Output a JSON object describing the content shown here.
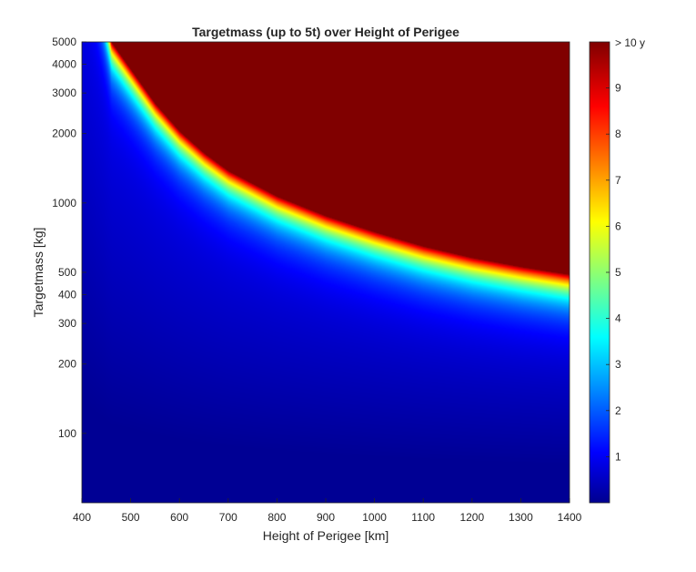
{
  "chart_data": {
    "type": "heatmap",
    "title": "Targetmass (up to 5t) over Height of Perigee",
    "xlabel": "Height of Perigee [km]",
    "ylabel": "Targetmass [kg]",
    "xlim": [
      400,
      1400
    ],
    "ylim": [
      50,
      5000
    ],
    "yscale": "log",
    "x_ticks": [
      400,
      500,
      600,
      700,
      800,
      900,
      1000,
      1100,
      1200,
      1300,
      1400
    ],
    "y_ticks": [
      100,
      200,
      300,
      400,
      500,
      1000,
      2000,
      3000,
      4000,
      5000
    ],
    "colorbar": {
      "colormap": "jet",
      "range": [
        0,
        10
      ],
      "ticks": [
        1,
        2,
        3,
        4,
        5,
        6,
        7,
        8,
        9
      ],
      "max_label": "> 10 y",
      "colors": [
        "#00008f",
        "#0000ff",
        "#00ffff",
        "#ffff00",
        "#ff0000",
        "#800000"
      ]
    },
    "saturation_boundary": {
      "x": [
        460,
        500,
        550,
        600,
        650,
        700,
        800,
        900,
        1000,
        1100,
        1200,
        1300,
        1400
      ],
      "y_mass_kg": [
        5000,
        3800,
        2700,
        2050,
        1650,
        1380,
        1070,
        880,
        750,
        650,
        580,
        530,
        490
      ]
    }
  }
}
